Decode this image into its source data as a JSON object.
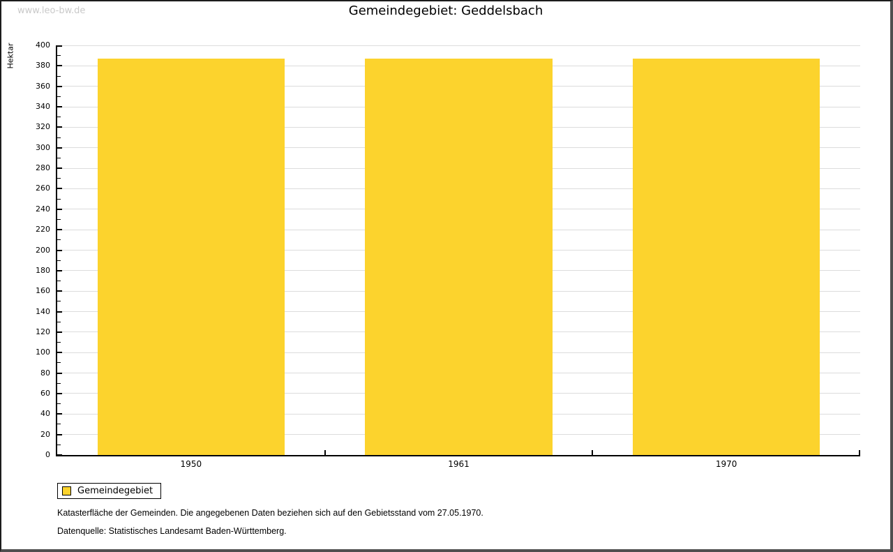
{
  "watermark": "www.leo-bw.de",
  "title": "Gemeindegebiet: Geddelsbach",
  "chart_data": {
    "type": "bar",
    "title": "Gemeindegebiet: Geddelsbach",
    "categories": [
      "1950",
      "1961",
      "1970"
    ],
    "series": [
      {
        "name": "Gemeindegebiet",
        "values": [
          387,
          387,
          387
        ]
      }
    ],
    "xlabel": "",
    "ylabel": "Hektar",
    "ylim": [
      0,
      400
    ],
    "ytick_step": 20,
    "minor_tick_step": 10,
    "grid": true,
    "bar_color": "#FCD32D",
    "grid_color": "#DCDCDC",
    "axis_color": "#000000",
    "legend_position": "bottom-left",
    "bar_width_fraction": 0.7
  },
  "legend": {
    "items": [
      {
        "label": "Gemeindegebiet",
        "color": "#FCD32D"
      }
    ]
  },
  "footer": {
    "line1": "Katasterfläche der Gemeinden. Die angegebenen Daten beziehen sich auf den Gebietsstand vom 27.05.1970.",
    "line2": "Datenquelle: Statistisches Landesamt Baden-Württemberg."
  }
}
